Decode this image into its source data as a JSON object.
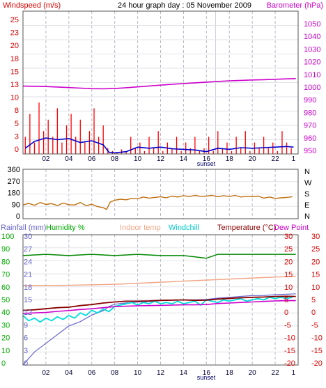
{
  "title": "24 hour graph day : 05 November 2009",
  "hour_labels": [
    "02",
    "04",
    "06",
    "08",
    "10",
    "12",
    "14",
    "16",
    "18",
    "20",
    "22",
    "1"
  ],
  "sunset_label": "sunset",
  "colors": {
    "grid": "#b8b8c8",
    "frame": "#555555",
    "wind_speed": "#ff0000",
    "wind_avg": "#0000cc",
    "barometer": "#cc00cc",
    "direction": "#c07010",
    "rain": "#6666cc",
    "humidity": "#008800",
    "indoor": "#f0a888",
    "windchill": "#00dddd",
    "temperature": "#880000",
    "dewpoint": "#cc00cc",
    "axis_left1": "#dd0000",
    "axis_right1": "#cc00cc",
    "axis_dir": "#000000",
    "axis_rain": "#6666cc",
    "axis_hum": "#00aa00",
    "axis_temp": "#dd0000"
  },
  "panels": {
    "wind": {
      "left_title": "Windspeed (m/s)",
      "right_title": "Barometer (hPa)",
      "left_ticks": [
        "25",
        "23",
        "20",
        "18",
        "15",
        "13",
        "10",
        "8",
        "5",
        "3",
        "0"
      ],
      "right_ticks": [
        "1050",
        "1040",
        "1030",
        "1020",
        "1010",
        "1000",
        "990",
        "980",
        "970",
        "960",
        "950"
      ]
    },
    "direction": {
      "left_ticks": [
        "360",
        "270",
        "180",
        "90",
        "0"
      ],
      "right_ticks": [
        "N",
        "W",
        "S",
        "E",
        "N"
      ]
    },
    "temp": {
      "legend": {
        "rain": "Rainfall (mm)",
        "humidity": "Humidity %",
        "indoor": "Indoor temp",
        "windchill": "Windchill",
        "temperature": "Temperature (°C)",
        "dewpoint": "Dew Point"
      },
      "rain_ticks": [
        "30",
        "27",
        "24",
        "21",
        "18",
        "15",
        "12",
        "9",
        "6",
        "3",
        "0"
      ],
      "hum_ticks": [
        "100",
        "90",
        "80",
        "70",
        "60",
        "50",
        "40",
        "30",
        "20",
        "10",
        "0"
      ],
      "right_ticks_a": [
        "30",
        "25",
        "20",
        "15",
        "10",
        "5",
        "0",
        "-5",
        "-10",
        "-15",
        "-20"
      ],
      "right_ticks_b": [
        "30",
        "25",
        "20",
        "15",
        "10",
        "5",
        "0",
        "-5",
        "-10",
        "-15",
        "-20"
      ]
    }
  },
  "chart_data": [
    {
      "type": "line",
      "title": "24 hour graph day : 05 November 2009",
      "x_unit": "hour of day",
      "series": [
        {
          "name": "Windspeed (m/s)",
          "axis": "left",
          "ylim": [
            0,
            25
          ],
          "style": "spikes",
          "x": [
            0.2,
            0.6,
            1.0,
            1.4,
            1.8,
            2.2,
            2.6,
            3.0,
            3.4,
            3.8,
            4.2,
            4.6,
            5.0,
            5.4,
            5.8,
            6.2,
            6.6,
            7.0,
            7.4,
            7.8,
            8.2,
            8.6,
            9.0,
            9.4,
            9.8,
            10.2,
            10.6,
            11.0,
            11.4,
            11.8,
            12.2,
            12.6,
            13.0,
            13.4,
            13.8,
            14.2,
            14.6,
            15.0,
            15.4,
            15.8,
            16.2,
            16.6,
            17.0,
            17.4,
            17.8,
            18.2,
            18.6,
            19.0,
            19.4,
            19.8,
            20.2,
            20.6,
            21.0,
            21.4,
            21.8,
            22.2,
            22.6,
            23.0,
            23.4
          ],
          "y": [
            3,
            7,
            2,
            9,
            4,
            6,
            3,
            8,
            2,
            5,
            7,
            3,
            6,
            2,
            4,
            8,
            3,
            5,
            1,
            0.5,
            0.3,
            0.8,
            0.5,
            3,
            1,
            2,
            0.5,
            3,
            1,
            4,
            0.5,
            2,
            1,
            3,
            0.5,
            2,
            1,
            3,
            0.5,
            1,
            3,
            0.5,
            4,
            1,
            2,
            0.5,
            3,
            1,
            4,
            0.5,
            2,
            1,
            3,
            1,
            2,
            0.5,
            4,
            2,
            1
          ]
        },
        {
          "name": "Average wind (m/s)",
          "axis": "left",
          "ylim": [
            0,
            25
          ],
          "x": [
            0.2,
            1,
            2,
            3,
            4,
            5,
            6,
            7,
            7.5,
            8,
            9,
            10,
            11,
            12,
            13,
            14,
            15,
            16,
            17,
            18,
            19,
            20,
            21,
            22,
            23,
            23.6
          ],
          "y": [
            1,
            2.2,
            2.8,
            2.5,
            2.7,
            2,
            2.3,
            1.6,
            0.3,
            0.2,
            0.4,
            1.2,
            1,
            1.2,
            0.9,
            0.8,
            0.7,
            0.4,
            1,
            0.8,
            1.1,
            1,
            1.1,
            1.2,
            1.3,
            1.2
          ]
        },
        {
          "name": "Barometer (hPa)",
          "axis": "right",
          "ylim": [
            950,
            1050
          ],
          "x": [
            0,
            2,
            4,
            6,
            7,
            8,
            9,
            10,
            11,
            12,
            13,
            14,
            15,
            16,
            17,
            18,
            19,
            20,
            21,
            22,
            23,
            23.8
          ],
          "y": [
            997.5,
            997.2,
            996.5,
            995.7,
            995.6,
            995.8,
            996.4,
            997,
            997.6,
            998.2,
            998.8,
            999.3,
            999.8,
            1000.3,
            1000.8,
            1001.2,
            1001.5,
            1001.8,
            1002,
            1002.3,
            1002.6,
            1002.8
          ]
        }
      ]
    },
    {
      "type": "line",
      "x_unit": "hour of day",
      "series": [
        {
          "name": "Wind direction (°)",
          "ylim": [
            0,
            360
          ],
          "x": [
            0,
            0.5,
            1,
            1.5,
            2,
            2.5,
            3,
            3.5,
            4,
            4.5,
            5,
            5.5,
            6,
            6.5,
            7,
            7.3,
            7.6,
            8,
            8.5,
            9,
            9.5,
            10,
            10.5,
            11,
            11.5,
            12,
            12.5,
            13,
            13.5,
            14,
            14.5,
            15,
            15.5,
            16,
            16.5,
            17,
            17.5,
            18,
            18.5,
            19,
            19.5,
            20,
            20.5,
            21,
            21.5,
            22,
            22.5,
            23,
            23.5
          ],
          "y": [
            100,
            112,
            98,
            118,
            104,
            110,
            96,
            114,
            102,
            100,
            118,
            95,
            106,
            88,
            80,
            68,
            120,
            135,
            142,
            138,
            148,
            145,
            158,
            150,
            155,
            160,
            152,
            165,
            158,
            168,
            162,
            170,
            163,
            165,
            170,
            160,
            168,
            162,
            170,
            158,
            163,
            160,
            165,
            150,
            158,
            148,
            152,
            155,
            160
          ]
        }
      ]
    },
    {
      "type": "line",
      "x_unit": "hour of day",
      "series": [
        {
          "name": "Rainfall (mm)",
          "axis": "left",
          "ylim": [
            0,
            30
          ],
          "x": [
            0,
            1,
            2,
            3,
            4,
            5,
            6,
            7,
            7.5,
            8,
            9,
            10,
            11,
            12,
            13,
            14,
            15,
            16,
            17,
            18,
            19,
            20,
            21,
            22,
            23,
            23.8
          ],
          "y": [
            0,
            3,
            5,
            7,
            9,
            10,
            11.5,
            12.5,
            13.5,
            14,
            14.3,
            14.5,
            14.6,
            14.8,
            14.9,
            15,
            15,
            15.1,
            15.4,
            15.6,
            15.8,
            16,
            16,
            16.2,
            16.3,
            16.4
          ]
        },
        {
          "name": "Humidity %",
          "axis": "left",
          "ylim": [
            0,
            100
          ],
          "x": [
            0,
            2,
            4,
            6,
            8,
            10,
            12,
            14,
            15,
            16,
            17,
            18,
            20,
            22,
            23.8
          ],
          "y": [
            84,
            85,
            84,
            85,
            84,
            85,
            84,
            84,
            83,
            82,
            85,
            85,
            85,
            85,
            85
          ]
        },
        {
          "name": "Indoor temp",
          "axis": "right",
          "ylim": [
            -20,
            30
          ],
          "x": [
            0,
            4,
            8,
            12,
            16,
            20,
            23.8
          ],
          "y": [
            10.5,
            10.6,
            11,
            11.8,
            12.6,
            13.4,
            14.1
          ]
        },
        {
          "name": "Windchill",
          "axis": "right",
          "ylim": [
            -20,
            30
          ],
          "x": [
            0,
            0.5,
            1,
            1.5,
            2,
            2.5,
            3,
            3.5,
            4,
            4.5,
            5,
            5.5,
            6,
            6.5,
            7,
            7.5,
            8,
            8.5,
            9,
            9.5,
            10,
            10.5,
            11,
            11.5,
            12,
            12.5,
            13,
            13.5,
            14,
            14.5,
            15,
            15.5,
            16,
            16.5,
            17,
            17.5,
            18,
            18.5,
            19,
            19.5,
            20,
            20.5,
            21,
            21.5,
            22,
            22.5,
            23,
            23.5
          ],
          "y": [
            -1,
            -3,
            -2,
            -3.5,
            -2,
            -3,
            -1.5,
            -2.5,
            -1,
            -2,
            0,
            -1,
            1,
            0,
            1.5,
            0.5,
            2.5,
            3,
            3.5,
            4,
            3,
            4,
            3.5,
            4.5,
            3.5,
            4,
            3.5,
            4.5,
            3.5,
            4,
            4.5,
            3,
            5,
            4.5,
            4,
            5,
            4.5,
            5,
            5.5,
            4.5,
            5,
            5.5,
            5,
            6,
            5.5,
            6,
            5.5,
            6
          ]
        },
        {
          "name": "Temperature (°C)",
          "axis": "right",
          "ylim": [
            -20,
            30
          ],
          "x": [
            0,
            1,
            2,
            3,
            4,
            5,
            6,
            7,
            8,
            9,
            10,
            11,
            12,
            13,
            14,
            15,
            16,
            17,
            18,
            19,
            20,
            21,
            22,
            23,
            23.8
          ],
          "y": [
            1,
            1.2,
            1.6,
            2,
            2.2,
            2.8,
            3.2,
            3.8,
            4.2,
            4.5,
            4.5,
            4.6,
            4.8,
            4.9,
            5,
            4.8,
            4.9,
            5.3,
            5.6,
            5.8,
            6,
            6.1,
            6.3,
            6.4,
            6.3
          ]
        },
        {
          "name": "Dew Point",
          "axis": "right",
          "ylim": [
            -20,
            30
          ],
          "x": [
            0,
            1,
            2,
            3,
            4,
            5,
            6,
            7,
            8,
            9,
            10,
            11,
            12,
            13,
            14,
            15,
            16,
            17,
            18,
            19,
            20,
            21,
            22,
            23,
            23.8
          ],
          "y": [
            -0.2,
            0,
            0.2,
            0.6,
            0.9,
            1.3,
            1.6,
            2,
            2.4,
            2.6,
            2.7,
            2.8,
            2.9,
            3,
            3.1,
            3.1,
            3.2,
            3.6,
            3.8,
            4,
            4.2,
            4.4,
            4.6,
            4.7,
            4.7
          ]
        }
      ]
    }
  ]
}
